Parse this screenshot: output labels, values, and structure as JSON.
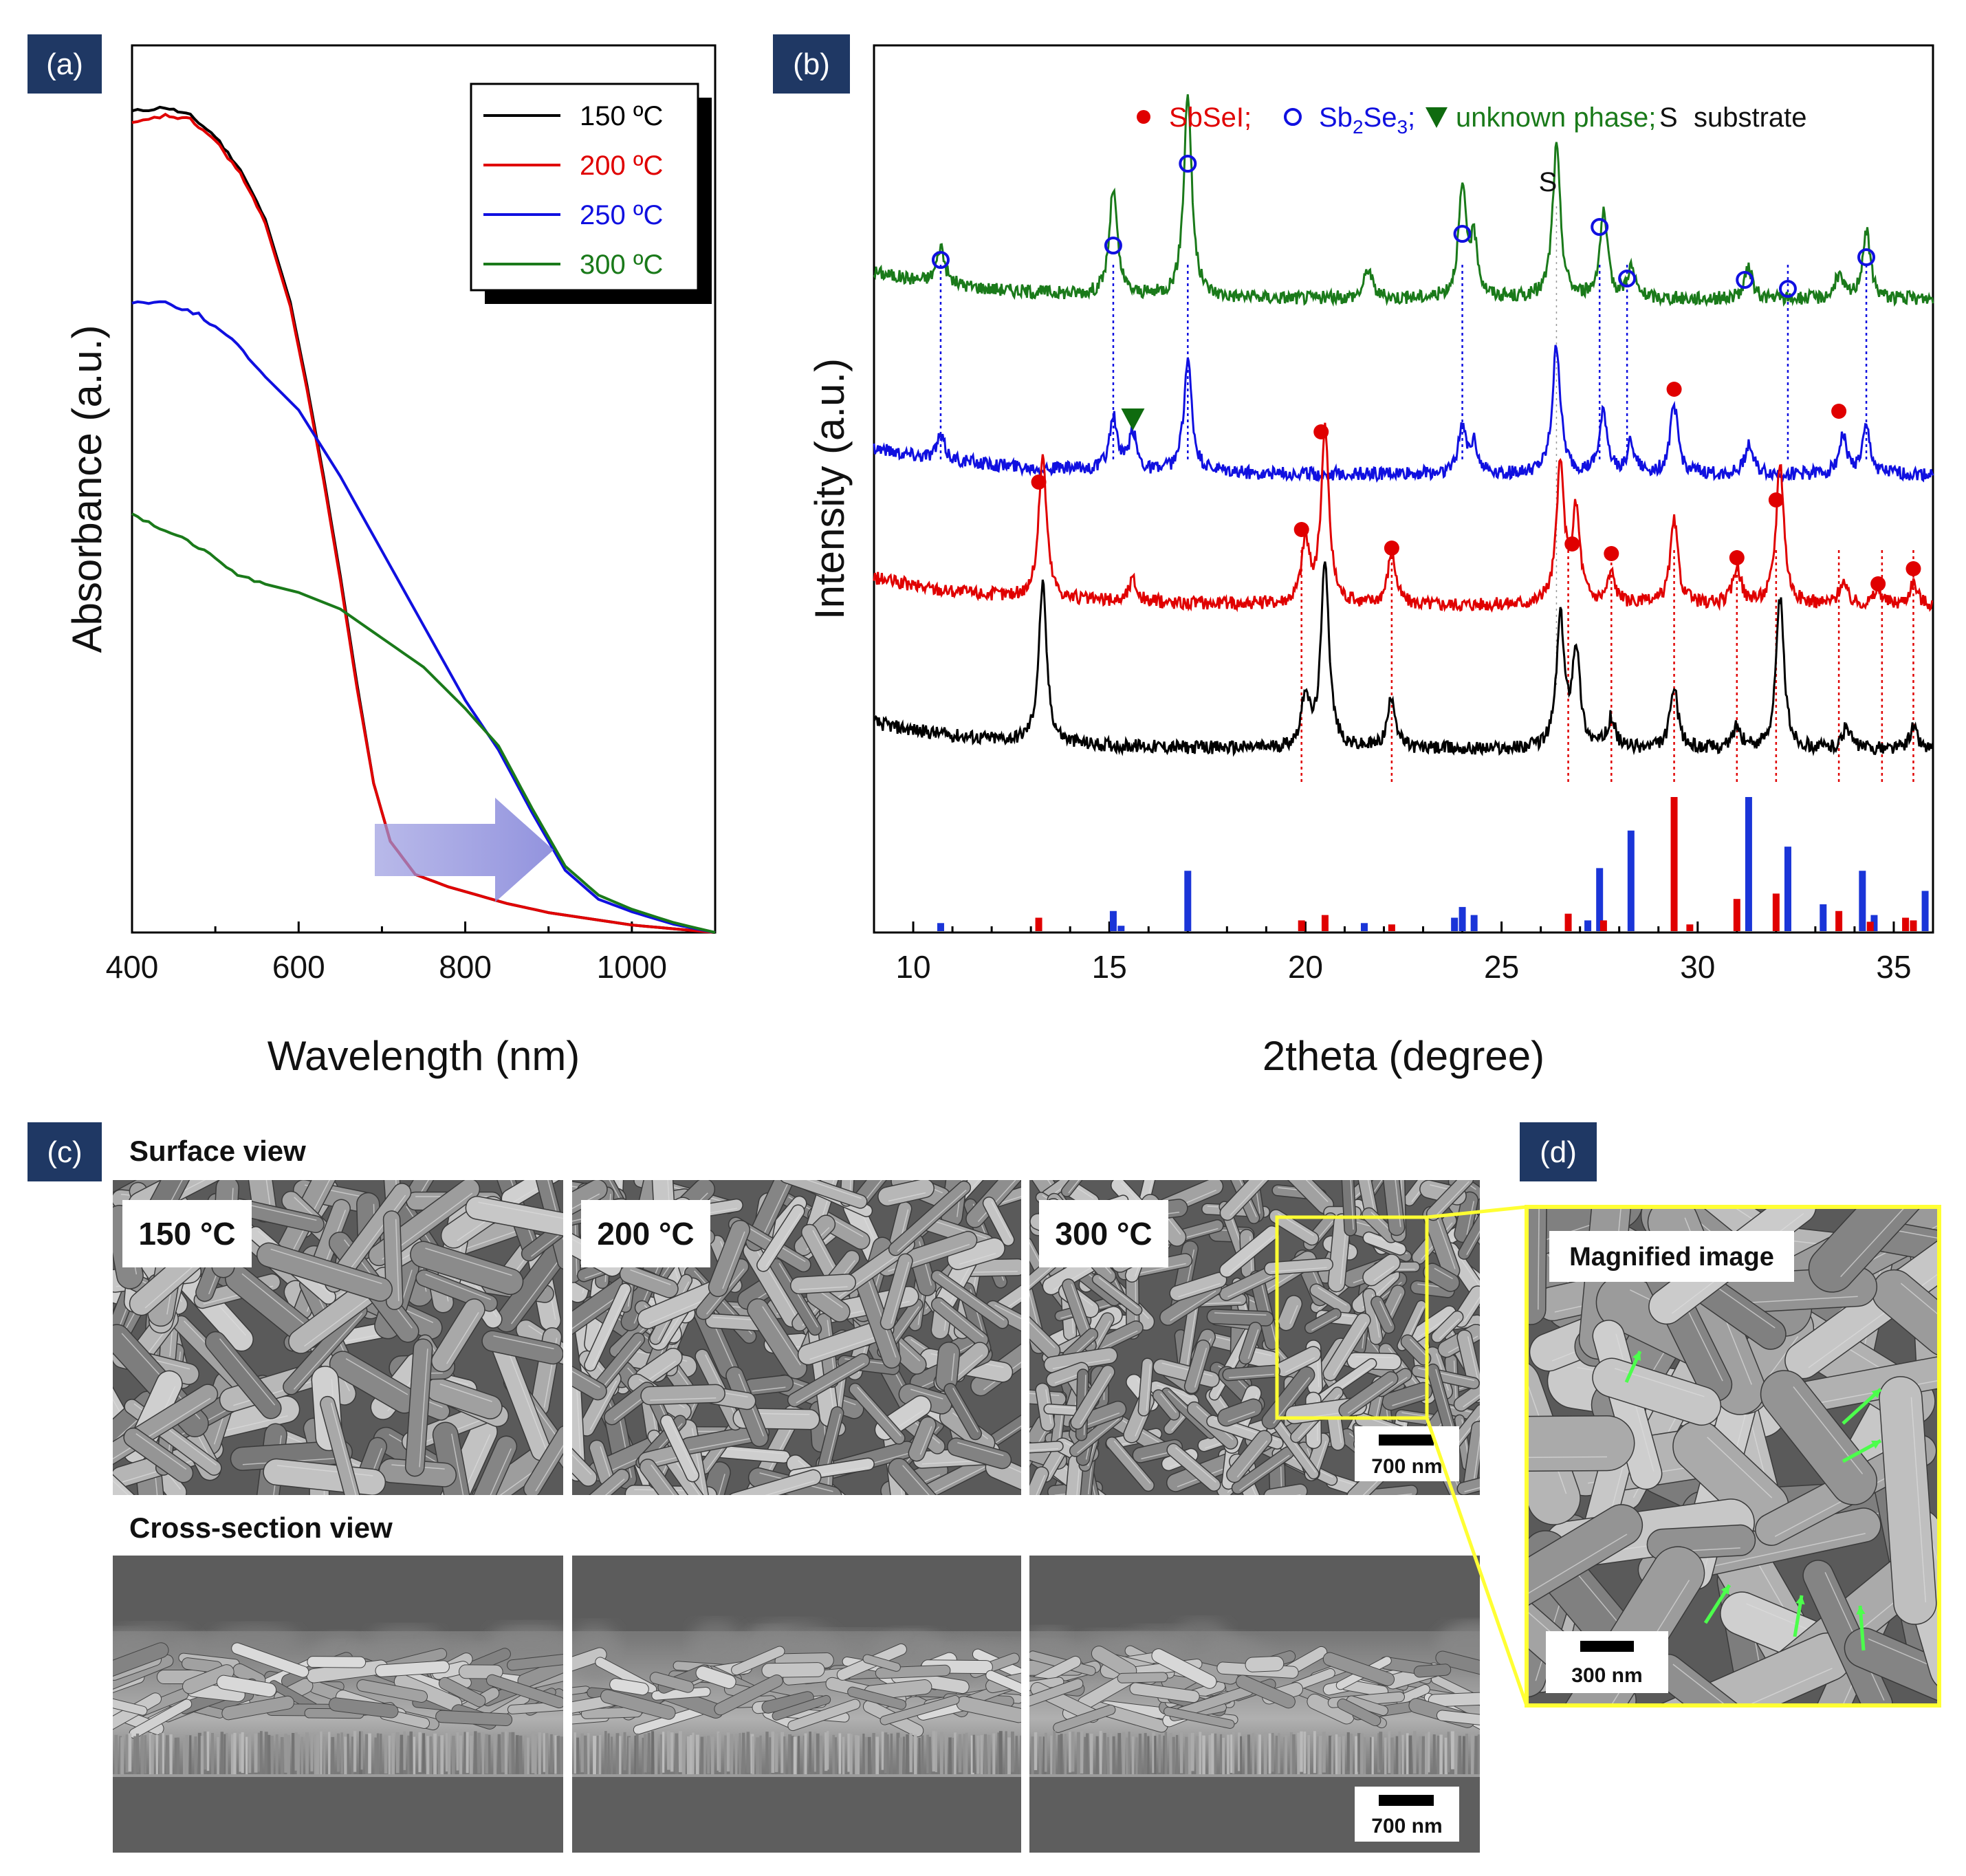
{
  "figure": {
    "panel_labels": [
      "(a)",
      "(b)",
      "(c)",
      "(d)"
    ]
  },
  "chart_data": [
    {
      "panel": "(a)",
      "type": "line",
      "title": "",
      "xlabel": "Wavelength (nm)",
      "ylabel": "Absorbance (a.u.)",
      "xlim": [
        400,
        1100
      ],
      "ylim": [
        0,
        1
      ],
      "x_ticks": [
        400,
        600,
        800,
        1000
      ],
      "x_minor_ticks": [
        500,
        700,
        900,
        1100
      ],
      "legend_position": "top-right",
      "annotation": "shift arrow toward longer wavelength",
      "series": [
        {
          "name": "150 °C",
          "label": "150 ºC",
          "color": "#000000",
          "x": [
            400,
            440,
            470,
            500,
            530,
            560,
            590,
            610,
            630,
            650,
            670,
            690,
            710,
            740,
            780,
            850,
            900,
            1000,
            1100
          ],
          "y": [
            0.99,
            0.995,
            0.985,
            0.96,
            0.92,
            0.86,
            0.76,
            0.66,
            0.55,
            0.43,
            0.3,
            0.18,
            0.11,
            0.07,
            0.055,
            0.035,
            0.024,
            0.009,
            0.0
          ]
        },
        {
          "name": "200 °C",
          "label": "200 ºC",
          "color": "#e00000",
          "x": [
            400,
            440,
            470,
            500,
            530,
            560,
            590,
            610,
            630,
            650,
            670,
            690,
            710,
            740,
            780,
            850,
            900,
            1000,
            1100
          ],
          "y": [
            0.975,
            0.985,
            0.98,
            0.955,
            0.915,
            0.855,
            0.755,
            0.655,
            0.545,
            0.425,
            0.295,
            0.18,
            0.11,
            0.07,
            0.055,
            0.035,
            0.024,
            0.009,
            0.0
          ]
        },
        {
          "name": "250 °C",
          "label": "250 ºC",
          "color": "#1010e0",
          "x": [
            400,
            440,
            480,
            520,
            560,
            600,
            650,
            700,
            750,
            800,
            840,
            880,
            920,
            960,
            1000,
            1050,
            1100
          ],
          "y": [
            0.76,
            0.76,
            0.745,
            0.715,
            0.67,
            0.63,
            0.55,
            0.46,
            0.37,
            0.28,
            0.22,
            0.145,
            0.075,
            0.04,
            0.025,
            0.01,
            0.0
          ]
        },
        {
          "name": "300 °C",
          "label": "300 ºC",
          "color": "#1a7a1a",
          "x": [
            400,
            440,
            480,
            520,
            560,
            600,
            650,
            700,
            750,
            800,
            840,
            880,
            920,
            960,
            1000,
            1050,
            1100
          ],
          "y": [
            0.505,
            0.485,
            0.465,
            0.435,
            0.42,
            0.41,
            0.39,
            0.355,
            0.32,
            0.27,
            0.225,
            0.15,
            0.08,
            0.045,
            0.028,
            0.012,
            0.0
          ]
        }
      ]
    },
    {
      "panel": "(b)",
      "type": "line",
      "title": "",
      "xlabel": "2theta (degree)",
      "ylabel": "Intensity (a.u.)",
      "xlim": [
        9,
        36
      ],
      "x_ticks": [
        10,
        15,
        20,
        25,
        30,
        35
      ],
      "legend": {
        "sbsei": "SbSeI;",
        "sb2se3_prefix": "Sb",
        "sb2se3_sub1": "2",
        "sb2se3_mid": "Se",
        "sb2se3_sub2": "3",
        "sb2se3_suffix": ";",
        "unknown": "unknown phase;",
        "substrate_mark": "S",
        "substrate": "substrate",
        "legend_position": "top"
      },
      "substrate_label": "S",
      "series": [
        {
          "name": "300 °C",
          "color": "#1a7a1a",
          "offset": 3,
          "peaks": [
            [
              10.7,
              0.25
            ],
            [
              15.1,
              0.7
            ],
            [
              17.0,
              1.35
            ],
            [
              21.6,
              0.2
            ],
            [
              24.0,
              0.7
            ],
            [
              24.3,
              0.35
            ],
            [
              26.4,
              1.0
            ],
            [
              27.6,
              0.55
            ],
            [
              28.3,
              0.2
            ],
            [
              31.3,
              0.2
            ],
            [
              33.6,
              0.15
            ],
            [
              34.3,
              0.45
            ]
          ]
        },
        {
          "name": "250 °C",
          "color": "#1010e0",
          "offset": 2,
          "peaks": [
            [
              10.7,
              0.15
            ],
            [
              15.1,
              0.35
            ],
            [
              15.6,
              0.25
            ],
            [
              17.0,
              0.75
            ],
            [
              24.0,
              0.3
            ],
            [
              24.3,
              0.2
            ],
            [
              26.4,
              0.85
            ],
            [
              27.6,
              0.4
            ],
            [
              28.3,
              0.2
            ],
            [
              29.4,
              0.45
            ],
            [
              31.3,
              0.2
            ],
            [
              33.7,
              0.25
            ],
            [
              34.3,
              0.3
            ]
          ]
        },
        {
          "name": "200 °C",
          "color": "#e00000",
          "offset": 1,
          "peaks": [
            [
              13.3,
              0.95
            ],
            [
              15.6,
              0.15
            ],
            [
              20.0,
              0.4
            ],
            [
              20.5,
              1.15
            ],
            [
              22.2,
              0.35
            ],
            [
              26.5,
              0.9
            ],
            [
              26.9,
              0.6
            ],
            [
              27.8,
              0.2
            ],
            [
              29.4,
              0.55
            ],
            [
              31.0,
              0.25
            ],
            [
              32.1,
              0.95
            ],
            [
              33.7,
              0.15
            ],
            [
              34.6,
              0.1
            ],
            [
              35.5,
              0.15
            ]
          ]
        },
        {
          "name": "150 °C",
          "color": "#000000",
          "offset": 0,
          "peaks": [
            [
              13.3,
              1.05
            ],
            [
              20.0,
              0.35
            ],
            [
              20.5,
              1.25
            ],
            [
              22.2,
              0.35
            ],
            [
              26.5,
              0.85
            ],
            [
              26.9,
              0.65
            ],
            [
              27.8,
              0.2
            ],
            [
              29.4,
              0.4
            ],
            [
              31.0,
              0.15
            ],
            [
              32.1,
              1.0
            ],
            [
              33.8,
              0.15
            ],
            [
              35.5,
              0.15
            ]
          ]
        }
      ],
      "markers": {
        "sb2se3_open_circles_300": [
          10.7,
          15.1,
          17.0,
          24.0,
          27.5,
          28.2,
          31.2,
          32.3,
          34.3
        ],
        "sbsei_dots_250": [
          20.4,
          29.4,
          33.6
        ],
        "unknown_triangle_250": [
          15.6
        ],
        "sbsei_dots_200": [
          13.2,
          19.9,
          22.2,
          26.8,
          27.8,
          31.0,
          32.0,
          34.6,
          35.5
        ],
        "substrate_s": [
          26.4
        ]
      },
      "reference_lines": {
        "blue_300": [
          10.7,
          15.1,
          17.0,
          24.0,
          27.5,
          28.2,
          32.3,
          34.3
        ],
        "red_200": [
          19.9,
          22.2,
          26.7,
          27.8,
          29.4,
          31.0,
          32.0,
          33.6,
          34.7,
          35.5
        ]
      },
      "reference_pattern": {
        "sbsei_red": [
          [
            13.2,
            0.1
          ],
          [
            19.9,
            0.08
          ],
          [
            20.5,
            0.12
          ],
          [
            22.2,
            0.05
          ],
          [
            26.7,
            0.13
          ],
          [
            27.6,
            0.08
          ],
          [
            29.4,
            1.0
          ],
          [
            29.8,
            0.05
          ],
          [
            31.0,
            0.24
          ],
          [
            32.0,
            0.28
          ],
          [
            33.6,
            0.15
          ],
          [
            34.4,
            0.07
          ],
          [
            35.3,
            0.1
          ],
          [
            35.5,
            0.08
          ]
        ],
        "sb2se3_blue": [
          [
            10.7,
            0.06
          ],
          [
            15.1,
            0.15
          ],
          [
            15.3,
            0.04
          ],
          [
            17.0,
            0.45
          ],
          [
            21.5,
            0.06
          ],
          [
            23.8,
            0.1
          ],
          [
            24.0,
            0.18
          ],
          [
            24.3,
            0.12
          ],
          [
            27.2,
            0.08
          ],
          [
            27.5,
            0.47
          ],
          [
            28.3,
            0.75
          ],
          [
            31.3,
            1.0
          ],
          [
            32.3,
            0.63
          ],
          [
            33.2,
            0.2
          ],
          [
            34.2,
            0.45
          ],
          [
            34.5,
            0.12
          ],
          [
            35.8,
            0.3
          ]
        ]
      }
    }
  ],
  "sem_c": {
    "surface_title": "Surface view",
    "cross_title": "Cross-section view",
    "temperatures": [
      "150 °C",
      "200 °C",
      "300 °C"
    ],
    "scale_surface": "700 nm",
    "scale_cross": "700 nm"
  },
  "sem_d": {
    "label": "Magnified image",
    "scale": "300 nm",
    "arrow_color": "#4cff4c",
    "frame_color": "#ffff33"
  }
}
